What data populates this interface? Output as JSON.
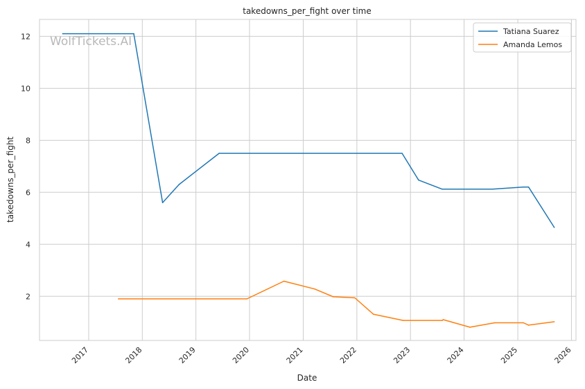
{
  "watermark": "WolfTickets.AI",
  "chart_data": {
    "type": "line",
    "title": "takedowns_per_fight over time",
    "xlabel": "Date",
    "ylabel": "takedowns_per_fight",
    "xlim": [
      "2016-02-01",
      "2026-02-01"
    ],
    "ylim": [
      0.3,
      12.65
    ],
    "x_tick_labels": [
      "2017",
      "2018",
      "2019",
      "2020",
      "2021",
      "2022",
      "2023",
      "2024",
      "2025",
      "2026"
    ],
    "y_tick_labels": [
      "2",
      "4",
      "6",
      "8",
      "10",
      "12"
    ],
    "y_ticks": [
      2,
      4,
      6,
      8,
      10,
      12
    ],
    "grid": true,
    "legend_position": "top-right",
    "series": [
      {
        "name": "Tatiana Suarez",
        "color": "#1f77b4",
        "points": [
          [
            "2016-07-08",
            12.1
          ],
          [
            "2017-11-04",
            12.1
          ],
          [
            "2018-05-19",
            5.6
          ],
          [
            "2018-09-08",
            6.3
          ],
          [
            "2019-06-08",
            7.5
          ],
          [
            "2022-11-05",
            7.5
          ],
          [
            "2023-02-25",
            6.47
          ],
          [
            "2023-08-05",
            6.12
          ],
          [
            "2024-07-13",
            6.12
          ],
          [
            "2025-02-08",
            6.2
          ],
          [
            "2025-03-15",
            6.2
          ],
          [
            "2025-09-06",
            4.65
          ]
        ]
      },
      {
        "name": "Amanda Lemos",
        "color": "#ff7f0e",
        "points": [
          [
            "2017-07-22",
            1.9
          ],
          [
            "2019-12-14",
            1.9
          ],
          [
            "2020-08-22",
            2.58
          ],
          [
            "2021-03-20",
            2.28
          ],
          [
            "2021-07-24",
            1.98
          ],
          [
            "2021-12-18",
            1.94
          ],
          [
            "2022-04-23",
            1.31
          ],
          [
            "2022-11-12",
            1.07
          ],
          [
            "2023-08-05",
            1.07
          ],
          [
            "2023-08-12",
            1.1
          ],
          [
            "2024-02-10",
            0.81
          ],
          [
            "2024-07-27",
            0.98
          ],
          [
            "2025-02-08",
            0.98
          ],
          [
            "2025-03-15",
            0.89
          ],
          [
            "2025-09-06",
            1.02
          ]
        ]
      }
    ]
  }
}
